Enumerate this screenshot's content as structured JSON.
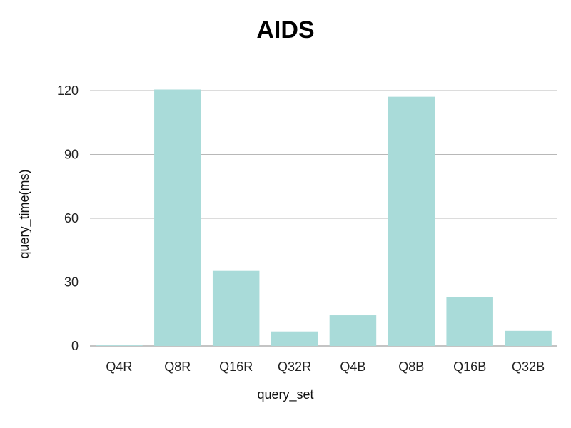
{
  "chart_data": {
    "type": "bar",
    "title": "AIDS",
    "xlabel": "query_set",
    "ylabel": "query_time(ms)",
    "categories": [
      "Q4R",
      "Q8R",
      "Q16R",
      "Q32R",
      "Q4B",
      "Q8B",
      "Q16B",
      "Q32B"
    ],
    "values": [
      0.3,
      120.5,
      35.3,
      6.8,
      14.4,
      117.1,
      22.9,
      7.1
    ],
    "ylim": [
      0,
      120
    ],
    "yticks": [
      "0",
      "30",
      "60",
      "90",
      "120"
    ],
    "grid": true,
    "bar_color": "#a9dbd9",
    "grid_color": "#b8b8b8"
  }
}
